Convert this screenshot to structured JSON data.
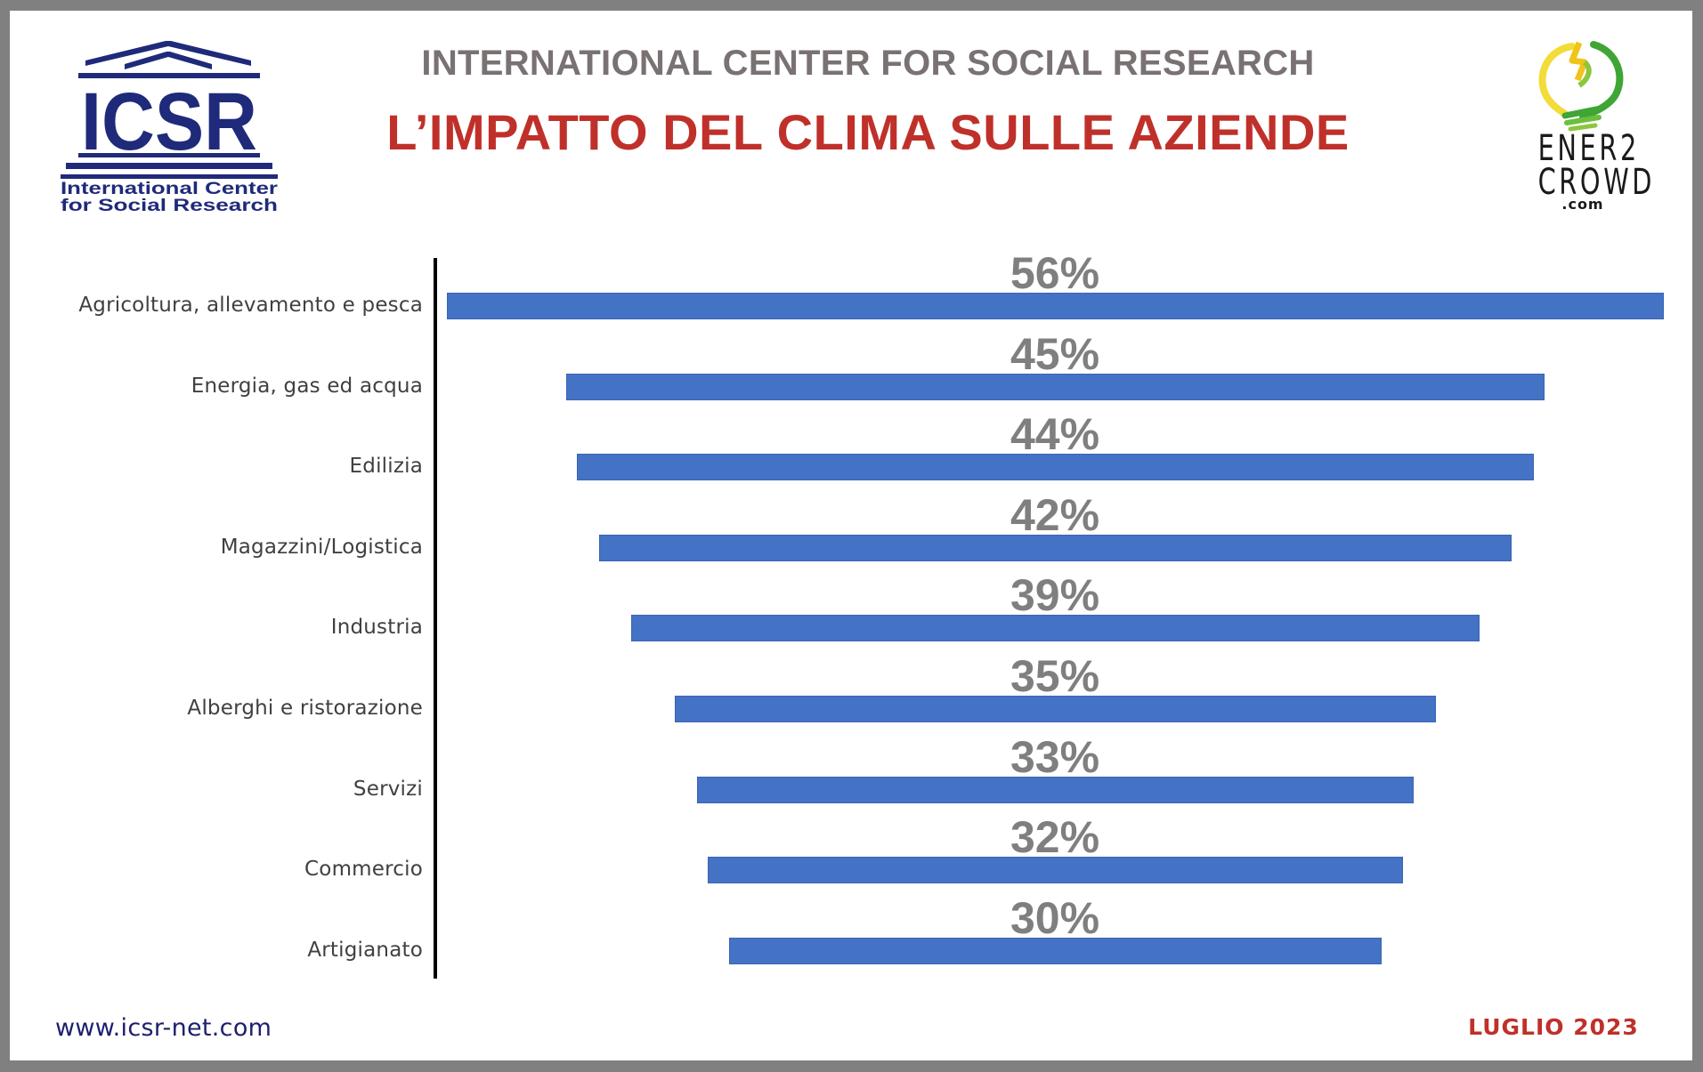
{
  "header": {
    "org_subtitle": "INTERNATIONAL CENTER FOR SOCIAL RESEARCH",
    "title": "L’IMPATTO DEL CLIMA SULLE AZIENDE"
  },
  "logos": {
    "icsr": {
      "acronym": "ICSR",
      "line1": "International Center",
      "line2": "for Social Research",
      "color": "#1f2a7a"
    },
    "ener2crowd": {
      "line1": "ENER2",
      "line2": "CROWD",
      "line3": ".com"
    }
  },
  "footer": {
    "url": "www.icsr-net.com",
    "date": "LUGLIO 2023"
  },
  "colors": {
    "bar": "#4472c4",
    "title_red": "#c0302a",
    "subtitle_gray": "#7a7272",
    "value_gray": "#7f7f7f",
    "label_gray": "#404040",
    "frame_gray": "#808080"
  },
  "chart_data": {
    "type": "bar",
    "orientation": "horizontal",
    "style": "centered funnel bars",
    "title": "L’IMPATTO DEL CLIMA SULLE AZIENDE",
    "subtitle": "INTERNATIONAL CENTER FOR SOCIAL RESEARCH",
    "xlabel": "",
    "ylabel": "",
    "grid": false,
    "legend": null,
    "categories": [
      "Agricoltura, allevamento e  pesca",
      "Energia,  gas ed acqua",
      "Edilizia",
      "Magazzini/Logistica",
      "Industria",
      "Alberghi  e ristorazione",
      "Servizi",
      "Commercio",
      "Artigianato"
    ],
    "values": [
      56,
      45,
      44,
      42,
      39,
      35,
      33,
      32,
      30
    ],
    "value_labels": [
      "56%",
      "45%",
      "44%",
      "42%",
      "39%",
      "35%",
      "33%",
      "32%",
      "30%"
    ],
    "unit": "%",
    "xlim": [
      0,
      56
    ]
  }
}
